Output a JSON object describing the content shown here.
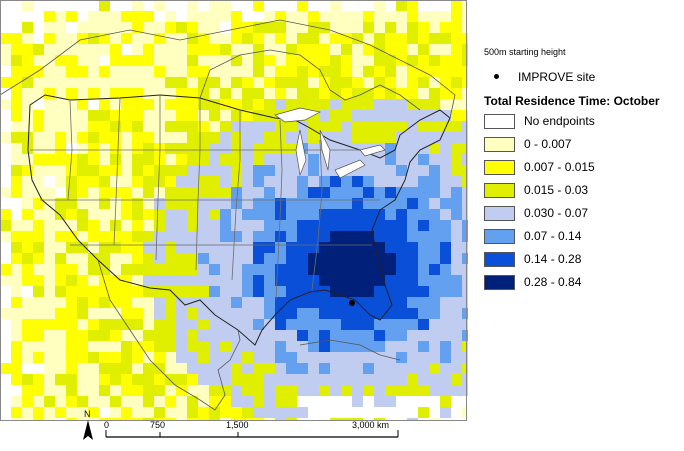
{
  "legend": {
    "subtitle": "500m starting height",
    "site_label": "IMPROVE site",
    "title": "Total Residence Time: October",
    "items": [
      {
        "label": "No endpoints",
        "color": "#ffffff"
      },
      {
        "label": "0 - 0.007",
        "color": "#ffffc0"
      },
      {
        "label": "0.007 - 0.015",
        "color": "#ffff00"
      },
      {
        "label": "0.015 - 0.03",
        "color": "#e0ee00"
      },
      {
        "label": "0.030 - 0.07",
        "color": "#c0ccf0"
      },
      {
        "label": "0.07 - 0.14",
        "color": "#64a0f0"
      },
      {
        "label": "0.14 - 0.28",
        "color": "#0a4fd8"
      },
      {
        "label": "0.28 - 0.84",
        "color": "#00207a"
      }
    ]
  },
  "scale_bar": {
    "north_label": "N",
    "ticks": [
      "0",
      "750",
      "1,500",
      "3,000 km"
    ]
  }
}
